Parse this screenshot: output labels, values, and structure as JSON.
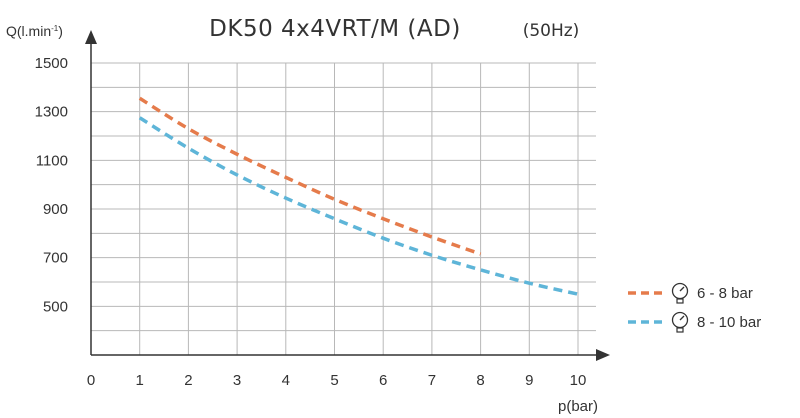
{
  "chart_data": {
    "type": "line",
    "title": "DK50 4x4VRT/M (AD)",
    "subtitle": "(50Hz)",
    "ylabel": "Q(l.min",
    "ylabel_sup": "-1",
    "ylabel_close": ")",
    "xlabel": "p(bar)",
    "xlim": [
      0,
      10
    ],
    "ylim": [
      300,
      1500
    ],
    "x_ticks": [
      "0",
      "1",
      "2",
      "3",
      "4",
      "5",
      "6",
      "7",
      "8",
      "9",
      "10"
    ],
    "y_ticks": [
      "500",
      "700",
      "900",
      "1100",
      "1300",
      "1500"
    ],
    "grid": true,
    "legend_position": "right",
    "series": [
      {
        "name": "6 - 8 bar",
        "color": "#e57b4b",
        "icon": "pressure-gauge-icon",
        "x": [
          1,
          2,
          3,
          4,
          5,
          6,
          7,
          8
        ],
        "y": [
          1355,
          1230,
          1125,
          1030,
          940,
          860,
          785,
          715
        ]
      },
      {
        "name": "8 - 10 bar",
        "color": "#5eb5d8",
        "icon": "pressure-gauge-icon",
        "x": [
          1,
          2,
          3,
          4,
          5,
          6,
          7,
          8,
          9,
          10
        ],
        "y": [
          1275,
          1150,
          1040,
          945,
          860,
          780,
          710,
          650,
          595,
          550
        ]
      }
    ]
  }
}
